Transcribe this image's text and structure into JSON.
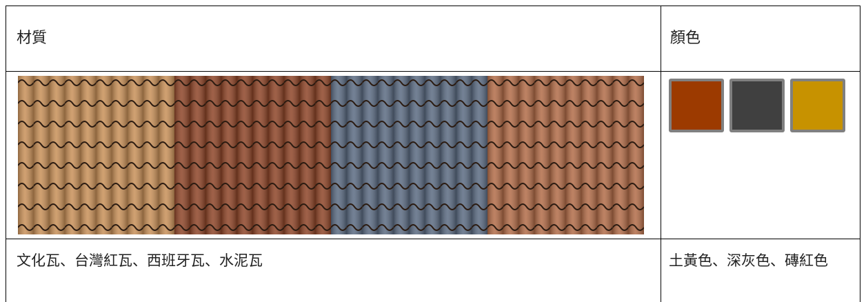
{
  "table": {
    "header": [
      "材質",
      "顏色"
    ],
    "rows": [
      [
        "文化瓦、台灣紅瓦、西班牙瓦、水泥瓦",
        "土黃色、深灰色、磚紅色"
      ]
    ]
  }
}
